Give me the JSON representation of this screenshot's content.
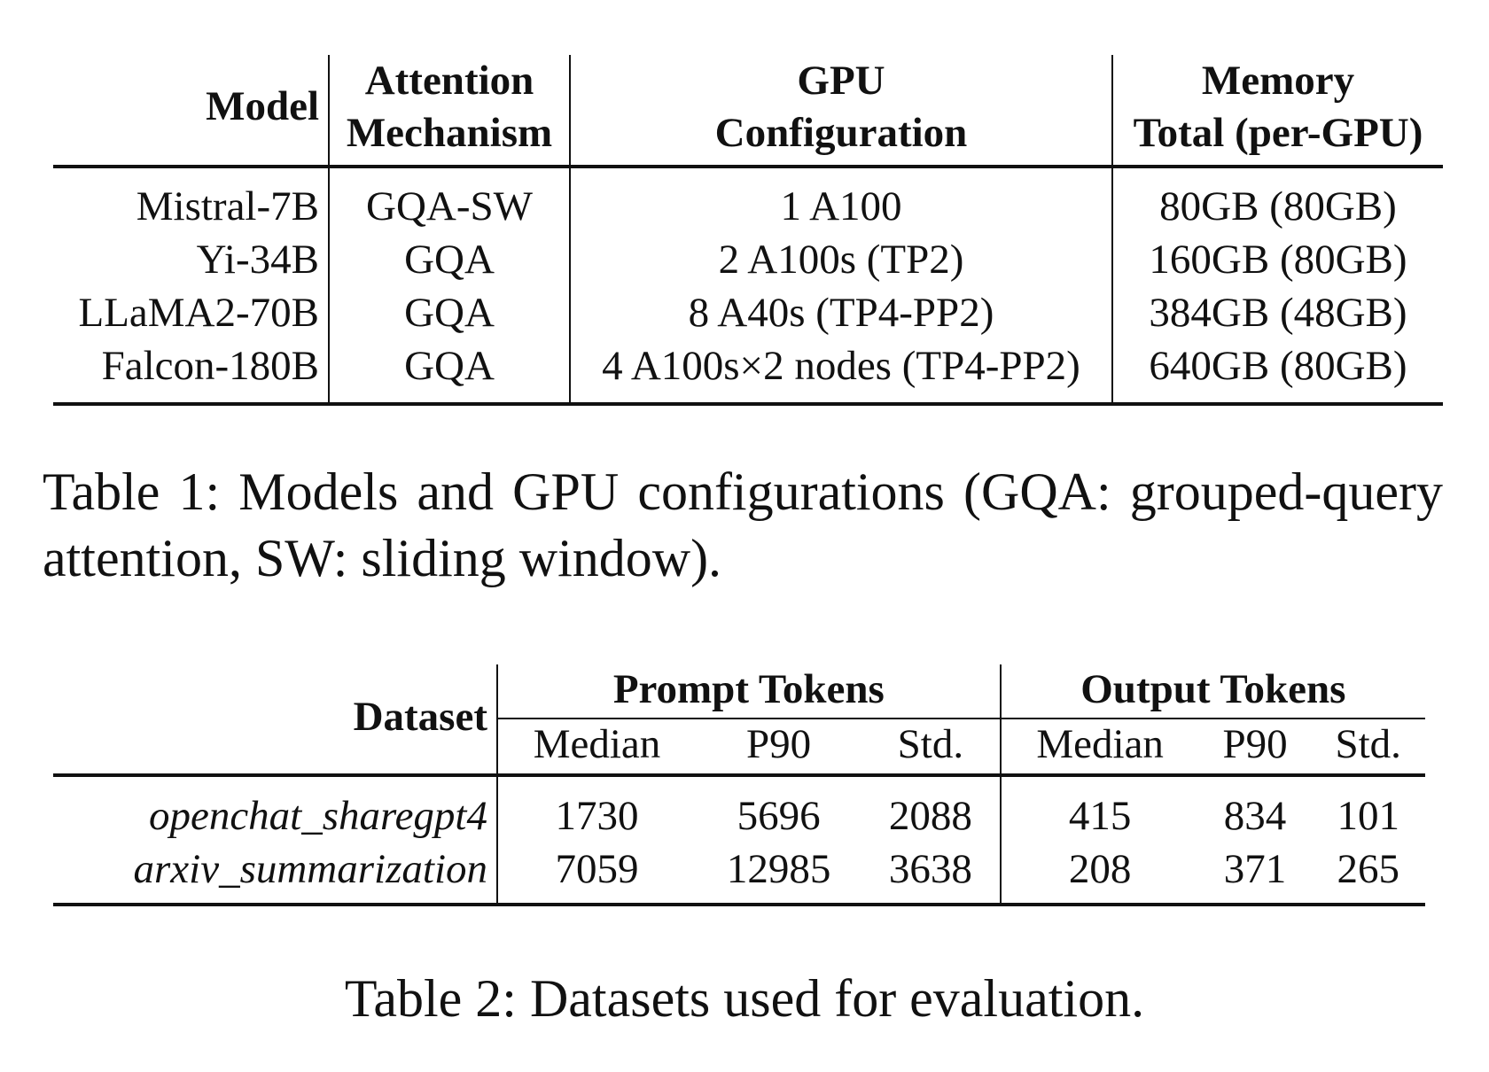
{
  "table1": {
    "headers": {
      "model": "Model",
      "attention_line1": "Attention",
      "attention_line2": "Mechanism",
      "gpu_line1": "GPU",
      "gpu_line2": "Configuration",
      "memory_line1": "Memory",
      "memory_line2": "Total (per-GPU)"
    },
    "rows": [
      {
        "model": "Mistral-7B",
        "attention": "GQA-SW",
        "gpu": "1 A100",
        "memory": "80GB (80GB)"
      },
      {
        "model": "Yi-34B",
        "attention": "GQA",
        "gpu": "2 A100s (TP2)",
        "memory": "160GB (80GB)"
      },
      {
        "model": "LLaMA2-70B",
        "attention": "GQA",
        "gpu": "8 A40s (TP4-PP2)",
        "memory": "384GB (48GB)"
      },
      {
        "model": "Falcon-180B",
        "attention": "GQA",
        "gpu": "4 A100s×2 nodes (TP4-PP2)",
        "memory": "640GB (80GB)"
      }
    ],
    "caption": "Table 1: Models and GPU configurations (GQA: grouped-query attention, SW: sliding window)."
  },
  "table2": {
    "headers": {
      "dataset": "Dataset",
      "prompt_group": "Prompt Tokens",
      "output_group": "Output Tokens",
      "median": "Median",
      "p90": "P90",
      "std": "Std."
    },
    "rows": [
      {
        "dataset": "openchat_sharegpt4",
        "prompt_median": "1730",
        "prompt_p90": "5696",
        "prompt_std": "2088",
        "output_median": "415",
        "output_p90": "834",
        "output_std": "101"
      },
      {
        "dataset": "arxiv_summarization",
        "prompt_median": "7059",
        "prompt_p90": "12985",
        "prompt_std": "3638",
        "output_median": "208",
        "output_p90": "371",
        "output_std": "265"
      }
    ],
    "caption": "Table 2: Datasets used for evaluation."
  }
}
